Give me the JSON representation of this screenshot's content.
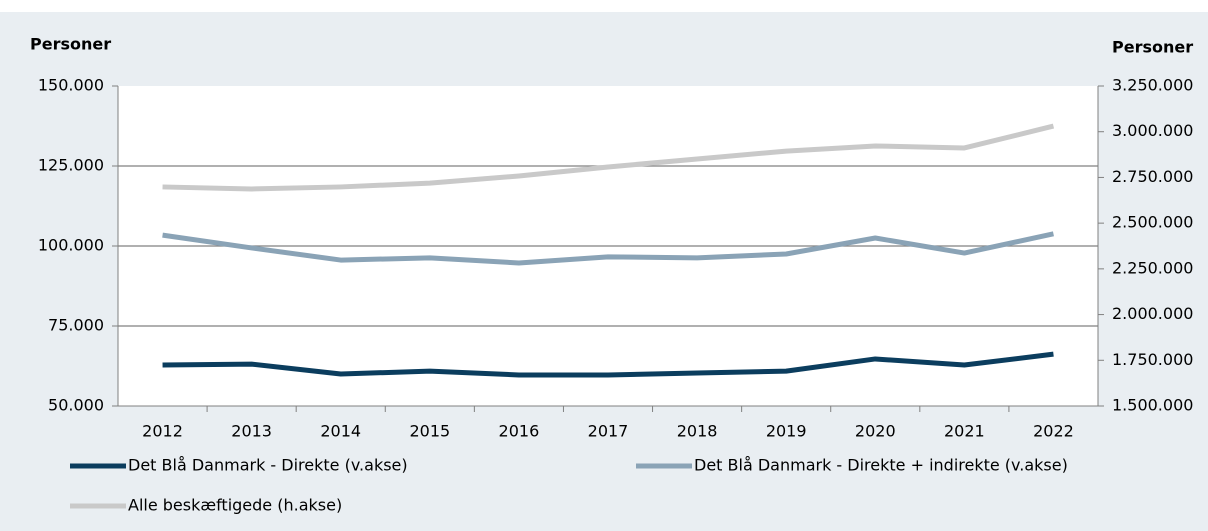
{
  "chart_data": {
    "type": "line",
    "ylabel": "Personer",
    "y2label": "Personer",
    "categories": [
      "2012",
      "2013",
      "2014",
      "2015",
      "2016",
      "2017",
      "2018",
      "2019",
      "2020",
      "2021",
      "2022"
    ],
    "series": [
      {
        "name": "Det Blå Danmark - Direkte (v.akse)",
        "color": "#0b3d5e",
        "axis": "y",
        "values": [
          62800,
          63100,
          60000,
          60900,
          59700,
          59700,
          60300,
          60900,
          64700,
          62800,
          66200
        ]
      },
      {
        "name": "Det Blå Danmark - Direkte + indirekte (v.akse)",
        "color": "#8aa3b6",
        "axis": "y",
        "values": [
          103400,
          99400,
          95600,
          96300,
          94700,
          96600,
          96300,
          97500,
          102500,
          97800,
          103800
        ]
      },
      {
        "name": "Alle beskæftigede (h.akse)",
        "color": "#c9c9c9",
        "axis": "y2",
        "values": [
          2698000,
          2687000,
          2698000,
          2719000,
          2758000,
          2807000,
          2851000,
          2894000,
          2922000,
          2911000,
          3031000
        ]
      }
    ],
    "ylim": [
      50000,
      150000
    ],
    "yticks": [
      {
        "value": 50000,
        "label": "50.000"
      },
      {
        "value": 75000,
        "label": "75.000"
      },
      {
        "value": 100000,
        "label": "100.000"
      },
      {
        "value": 125000,
        "label": "125.000"
      },
      {
        "value": 150000,
        "label": "150.000"
      }
    ],
    "y2lim": [
      1500000,
      3250000
    ],
    "y2ticks": [
      {
        "value": 1500000,
        "label": "1.500.000"
      },
      {
        "value": 1750000,
        "label": "1.750.000"
      },
      {
        "value": 2000000,
        "label": "2.000.000"
      },
      {
        "value": 2250000,
        "label": "2.250.000"
      },
      {
        "value": 2500000,
        "label": "2.500.000"
      },
      {
        "value": 2750000,
        "label": "2.750.000"
      },
      {
        "value": 3000000,
        "label": "3.000.000"
      },
      {
        "value": 3250000,
        "label": "3.250.000"
      }
    ],
    "grid": true
  }
}
